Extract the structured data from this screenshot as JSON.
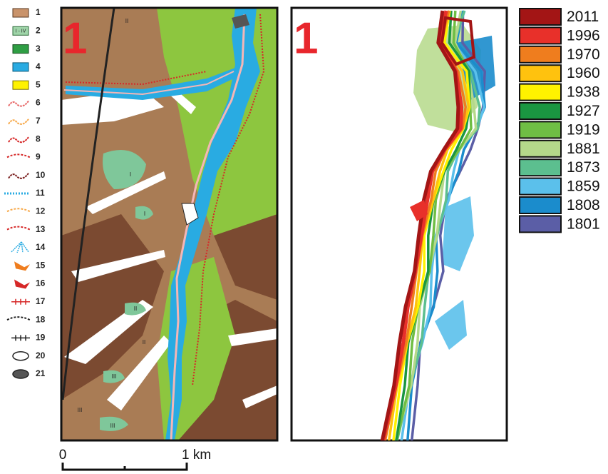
{
  "legend": {
    "items": [
      "1",
      "2",
      "3",
      "4",
      "5",
      "6",
      "7",
      "8",
      "9",
      "10",
      "11",
      "12",
      "13",
      "14",
      "15",
      "16",
      "17",
      "18",
      "19",
      "20",
      "21"
    ],
    "item2_swatch_label": "I - IV"
  },
  "panels": [
    {
      "label": "1"
    },
    {
      "label": "1"
    }
  ],
  "map_labels": [
    "II",
    "I",
    "I",
    "II",
    "II",
    "III",
    "III",
    "III"
  ],
  "years": [
    {
      "label": "2011",
      "color": "#a31515"
    },
    {
      "label": "1996",
      "color": "#e8302a"
    },
    {
      "label": "1970",
      "color": "#ef7d1e"
    },
    {
      "label": "1960",
      "color": "#ffc20e"
    },
    {
      "label": "1938",
      "color": "#fff200"
    },
    {
      "label": "1927",
      "color": "#1a9641"
    },
    {
      "label": "1919",
      "color": "#6fbe44"
    },
    {
      "label": "1881",
      "color": "#b5d98a"
    },
    {
      "label": "1873",
      "color": "#5cbf8f"
    },
    {
      "label": "1859",
      "color": "#5bc0eb"
    },
    {
      "label": "1808",
      "color": "#1b8ccc"
    },
    {
      "label": "1801",
      "color": "#5b5ea6"
    }
  ],
  "scale_bar": {
    "start": "0",
    "end": "1 km"
  }
}
